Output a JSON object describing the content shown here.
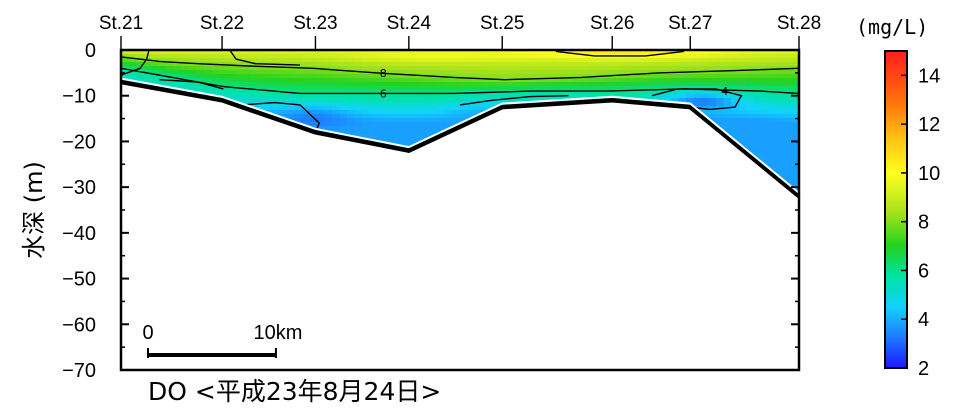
{
  "chart_data": {
    "type": "heatmap",
    "title": "DO <平成23年8月24日>",
    "ylabel": "水深 (m)",
    "colorbar_unit": "(mg/L)",
    "stations": [
      "St.21",
      "St.22",
      "St.23",
      "St.24",
      "St.25",
      "St.26",
      "St.27",
      "St.28"
    ],
    "station_km": [
      0,
      7.9,
      15.2,
      22.5,
      29.8,
      38.4,
      44.5,
      53.0
    ],
    "xlim_km": [
      0,
      53.0
    ],
    "ylim": [
      -70,
      0
    ],
    "yticks": [
      0,
      -10,
      -20,
      -30,
      -40,
      -50,
      -60,
      -70
    ],
    "ytick_labels": [
      "0",
      "−10",
      "−20",
      "−30",
      "−40",
      "−50",
      "−60",
      "−70"
    ],
    "bottom_profile": {
      "x_km": [
        0,
        7.9,
        15.2,
        22.5,
        29.8,
        38.4,
        44.5,
        53.0
      ],
      "depth_m": [
        -7,
        -11,
        -18,
        -22,
        -12.5,
        -11,
        -12.5,
        -32
      ]
    },
    "contour_levels": [
      4,
      6,
      8
    ],
    "contour_labels": [
      {
        "value": "8",
        "x_km": 20.5,
        "depth_m": -5
      },
      {
        "value": "6",
        "x_km": 20.5,
        "depth_m": -9.5
      },
      {
        "value": "4",
        "x_km": 47.2,
        "depth_m": -9
      }
    ],
    "colorbar": {
      "min": 2,
      "max": 15,
      "ticks": [
        2,
        4,
        6,
        8,
        10,
        12,
        14
      ],
      "tick_labels": [
        "2",
        "4",
        "6",
        "8",
        "10",
        "12",
        "14"
      ],
      "stops": [
        {
          "v": 2,
          "color": "#1a1aff"
        },
        {
          "v": 3.3,
          "color": "#1e7dff"
        },
        {
          "v": 4.5,
          "color": "#12d2ff"
        },
        {
          "v": 5.8,
          "color": "#00e3a0"
        },
        {
          "v": 7,
          "color": "#23d21e"
        },
        {
          "v": 8.4,
          "color": "#a8e21c"
        },
        {
          "v": 10,
          "color": "#ffff1e"
        },
        {
          "v": 11.5,
          "color": "#ffbe14"
        },
        {
          "v": 13,
          "color": "#ff6e0a"
        },
        {
          "v": 15,
          "color": "#ff1e1e"
        }
      ]
    },
    "scale_bar": {
      "label_start": "0",
      "label_end": "10km",
      "length_km": 10
    }
  }
}
